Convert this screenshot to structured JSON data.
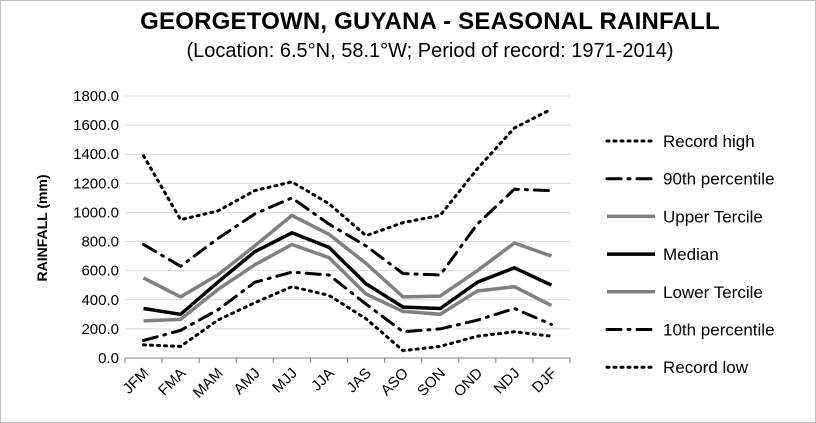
{
  "chart_data": {
    "type": "line",
    "title": "GEORGETOWN, GUYANA - SEASONAL RAINFALL",
    "subtitle": "(Location: 6.5°N, 58.1°W; Period of record: 1971-2014)",
    "ylabel": "RAINFALL (mm)",
    "xlabel": "",
    "ylim": [
      0,
      1800
    ],
    "yticks": [
      "0.0",
      "200.0",
      "400.0",
      "600.0",
      "800.0",
      "1000.0",
      "1200.0",
      "1400.0",
      "1600.0",
      "1800.0"
    ],
    "categories": [
      "JFM",
      "FMA",
      "MAM",
      "AMJ",
      "MJJ",
      "JJA",
      "JAS",
      "ASO",
      "SON",
      "OND",
      "NDJ",
      "DJF"
    ],
    "grid": true,
    "legend_position": "right",
    "series": [
      {
        "name": "Record high",
        "color": "#000000",
        "style": "dotted",
        "values": [
          1390,
          950,
          1010,
          1150,
          1210,
          1060,
          840,
          930,
          980,
          1300,
          1580,
          1710
        ]
      },
      {
        "name": "90th percentile",
        "color": "#000000",
        "style": "dashdot",
        "values": [
          780,
          630,
          820,
          990,
          1100,
          920,
          770,
          580,
          570,
          920,
          1160,
          1150
        ]
      },
      {
        "name": "Upper Tercile",
        "color": "#808080",
        "style": "solid",
        "values": [
          550,
          420,
          570,
          770,
          980,
          850,
          650,
          420,
          425,
          600,
          790,
          700
        ]
      },
      {
        "name": "Median",
        "color": "#000000",
        "style": "solid",
        "values": [
          340,
          300,
          520,
          730,
          860,
          760,
          510,
          350,
          340,
          520,
          620,
          500
        ]
      },
      {
        "name": "Lower Tercile",
        "color": "#808080",
        "style": "solid",
        "values": [
          255,
          265,
          470,
          640,
          780,
          690,
          440,
          320,
          300,
          460,
          490,
          360
        ]
      },
      {
        "name": "10th percentile",
        "color": "#000000",
        "style": "dashdot",
        "values": [
          120,
          190,
          330,
          520,
          590,
          570,
          370,
          180,
          200,
          260,
          340,
          230
        ]
      },
      {
        "name": "Record low",
        "color": "#000000",
        "style": "dotted",
        "values": [
          90,
          80,
          260,
          380,
          490,
          430,
          270,
          50,
          80,
          150,
          180,
          150
        ]
      }
    ]
  }
}
